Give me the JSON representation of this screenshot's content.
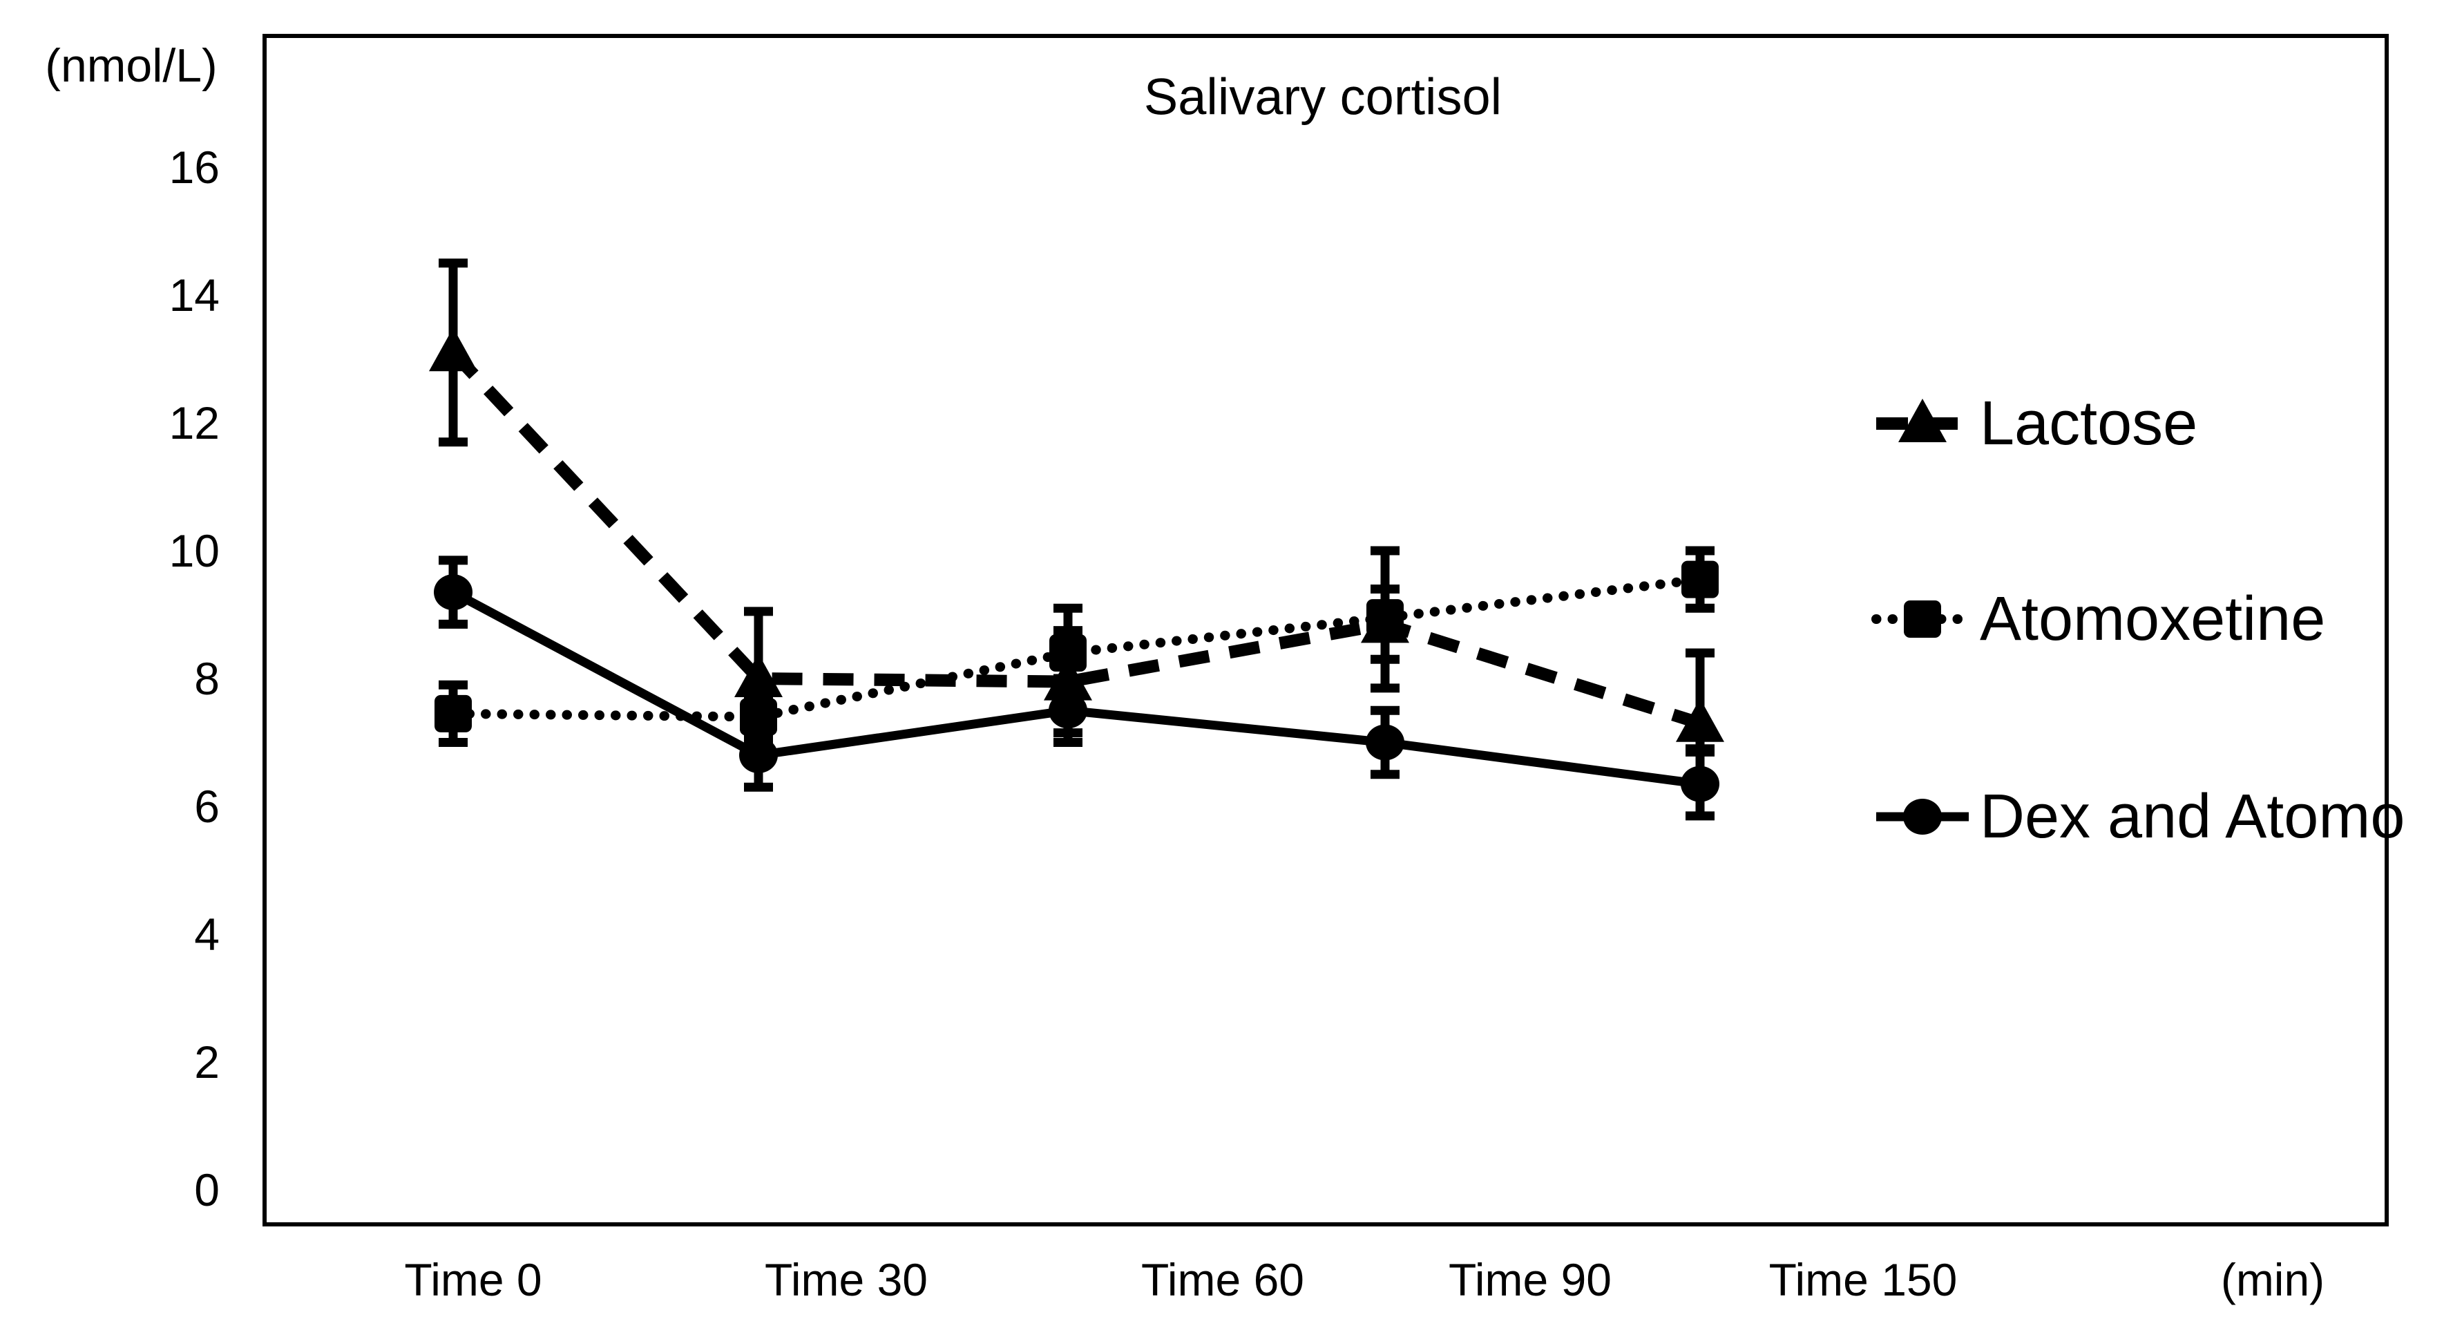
{
  "chart_data": {
    "type": "line",
    "title": "Salivary cortisol",
    "y_axis": {
      "unit_label": "(nmol/L)",
      "ticks": [
        16,
        14,
        12,
        10,
        8,
        6,
        4,
        2,
        0
      ],
      "min": 0,
      "max": 16
    },
    "x_axis": {
      "tick_labels": [
        "Time 0",
        "Time 30",
        "Time 60",
        "Time 90",
        "Time 150"
      ],
      "unit_label": "(min)"
    },
    "grid": false,
    "legend_position": "right-inside",
    "colors": {
      "foreground": "#000000",
      "background": "#ffffff"
    },
    "series": [
      {
        "name": "Lactose",
        "marker": "triangle",
        "line_style": "dashed",
        "values": [
          13.1,
          8.0,
          7.95,
          8.85,
          7.3
        ],
        "err_up": [
          1.4,
          1.05,
          0.8,
          0.55,
          1.1
        ],
        "err_down": [
          1.4,
          0.6,
          0.8,
          0.55,
          0.4
        ]
      },
      {
        "name": "Atomoxetine",
        "marker": "square",
        "line_style": "dotted",
        "values": [
          7.45,
          7.4,
          8.4,
          8.95,
          9.55
        ],
        "err_up": [
          0.45,
          0.35,
          0.7,
          1.05,
          0.45
        ],
        "err_down": [
          0.45,
          0.35,
          0.7,
          1.1,
          0.45
        ]
      },
      {
        "name": "Dex and Atomo",
        "marker": "circle",
        "line_style": "solid",
        "values": [
          9.35,
          6.8,
          7.5,
          7.0,
          6.35
        ],
        "err_up": [
          0.5,
          0.5,
          0.5,
          0.5,
          0.5
        ],
        "err_down": [
          0.5,
          0.5,
          0.5,
          0.5,
          0.5
        ]
      }
    ]
  }
}
